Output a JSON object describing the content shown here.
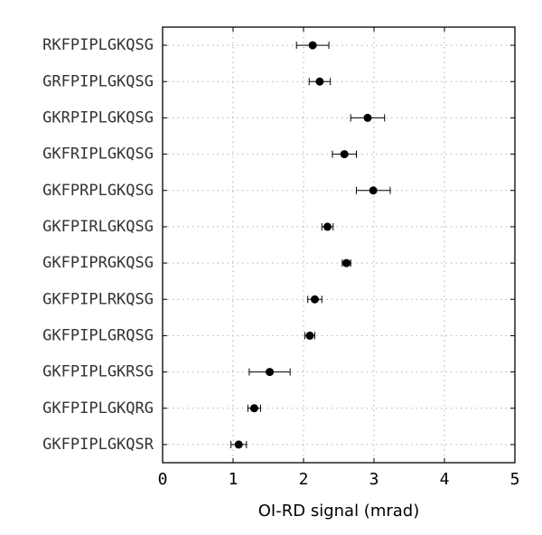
{
  "chart_data": {
    "type": "scatter",
    "orientation": "horizontal",
    "title": "",
    "xlabel": "OI-RD signal (mrad)",
    "ylabel": "",
    "xlim": [
      0,
      5
    ],
    "xticks": [
      "0",
      "1",
      "2",
      "3",
      "4",
      "5"
    ],
    "grid": true,
    "marker_color": "#000000",
    "error_bars": true,
    "categories": [
      "RKFPIPLGKQSG",
      "GRFPIPLGKQSG",
      "GKRPIPLGKQSG",
      "GKFRIPLGKQSG",
      "GKFPRPLGKQSG",
      "GKFPIRLGKQSG",
      "GKFPIPRGKQSG",
      "GKFPIPLRKQSG",
      "GKFPIPLGRQSG",
      "GKFPIPLGKRSG",
      "GKFPIPLGKQRG",
      "GKFPIPLGKQSR"
    ],
    "values": [
      2.13,
      2.23,
      2.91,
      2.58,
      2.99,
      2.34,
      2.61,
      2.16,
      2.09,
      1.52,
      1.3,
      1.08
    ],
    "errors": [
      0.23,
      0.15,
      0.24,
      0.17,
      0.24,
      0.08,
      0.06,
      0.1,
      0.07,
      0.29,
      0.09,
      0.11
    ]
  }
}
